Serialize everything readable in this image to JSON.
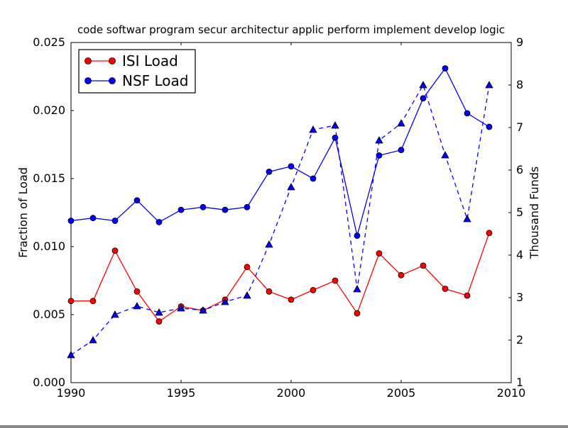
{
  "figure": {
    "background": "#ffffff"
  },
  "colors": {
    "frame": "#000000",
    "text": "#000000",
    "isi": "#ff0000",
    "nsf": "#0000ff",
    "marker_edge": "#000000"
  },
  "legend": {
    "position": "upper-left",
    "entries": [
      {
        "label": "ISI Load",
        "color": "#ff0000"
      },
      {
        "label": "NSF Load",
        "color": "#0000ff"
      }
    ]
  },
  "chart_data": {
    "type": "line",
    "title": "code softwar program secur architectur applic perform implement develop logic",
    "xlabel": "",
    "ylabel_left": "Fraction of Load",
    "ylabel_right": "Thousand Funds",
    "xlim": [
      1990,
      2010
    ],
    "ylim_left": [
      0.0,
      0.025
    ],
    "ylim_right": [
      1,
      9
    ],
    "grid": false,
    "xticks": {
      "values": [
        1990,
        1995,
        2000,
        2005,
        2010
      ],
      "labels": [
        "1990",
        "1995",
        "2000",
        "2005",
        "2010"
      ]
    },
    "yticks_left": {
      "values": [
        0.0,
        0.005,
        0.01,
        0.015,
        0.02,
        0.025
      ],
      "labels": [
        "0.000",
        "0.005",
        "0.010",
        "0.015",
        "0.020",
        "0.025"
      ]
    },
    "yticks_right": {
      "values": [
        1,
        2,
        3,
        4,
        5,
        6,
        7,
        8,
        9
      ],
      "labels": [
        "1",
        "2",
        "3",
        "4",
        "5",
        "6",
        "7",
        "8",
        "9"
      ]
    },
    "x": [
      1990,
      1991,
      1992,
      1993,
      1994,
      1995,
      1996,
      1997,
      1998,
      1999,
      2000,
      2001,
      2002,
      2003,
      2004,
      2005,
      2006,
      2007,
      2008,
      2009
    ],
    "series": [
      {
        "id": "isi-load",
        "name": "ISI Load",
        "axis": "left",
        "color": "#ff0000",
        "marker": "circle",
        "line_style": "solid",
        "in_legend": true,
        "values": [
          0.006,
          0.006,
          0.0097,
          0.0067,
          0.0045,
          0.0056,
          0.0053,
          0.0061,
          0.0085,
          0.0067,
          0.0061,
          0.0068,
          0.0075,
          0.0051,
          0.0095,
          0.0079,
          0.0086,
          0.0069,
          0.0064,
          0.011
        ]
      },
      {
        "id": "nsf-load",
        "name": "NSF Load",
        "axis": "left",
        "color": "#0000ff",
        "marker": "circle",
        "line_style": "solid",
        "in_legend": true,
        "values": [
          0.0119,
          0.0121,
          0.0119,
          0.0134,
          0.0118,
          0.0127,
          0.0129,
          0.0127,
          0.0129,
          0.0155,
          0.0159,
          0.015,
          0.018,
          0.0108,
          0.0167,
          0.0171,
          0.0209,
          0.0231,
          0.0198,
          0.0188
        ]
      },
      {
        "id": "funds-dashed",
        "name": "",
        "axis": "right",
        "color": "#0000ff",
        "marker": "triangle",
        "line_style": "dashed",
        "in_legend": false,
        "values": [
          1.65,
          2.0,
          2.6,
          2.8,
          2.65,
          2.75,
          2.7,
          2.9,
          3.05,
          4.25,
          5.6,
          6.95,
          7.05,
          3.2,
          6.7,
          7.1,
          8.0,
          6.35,
          4.85,
          8.0
        ]
      }
    ]
  }
}
